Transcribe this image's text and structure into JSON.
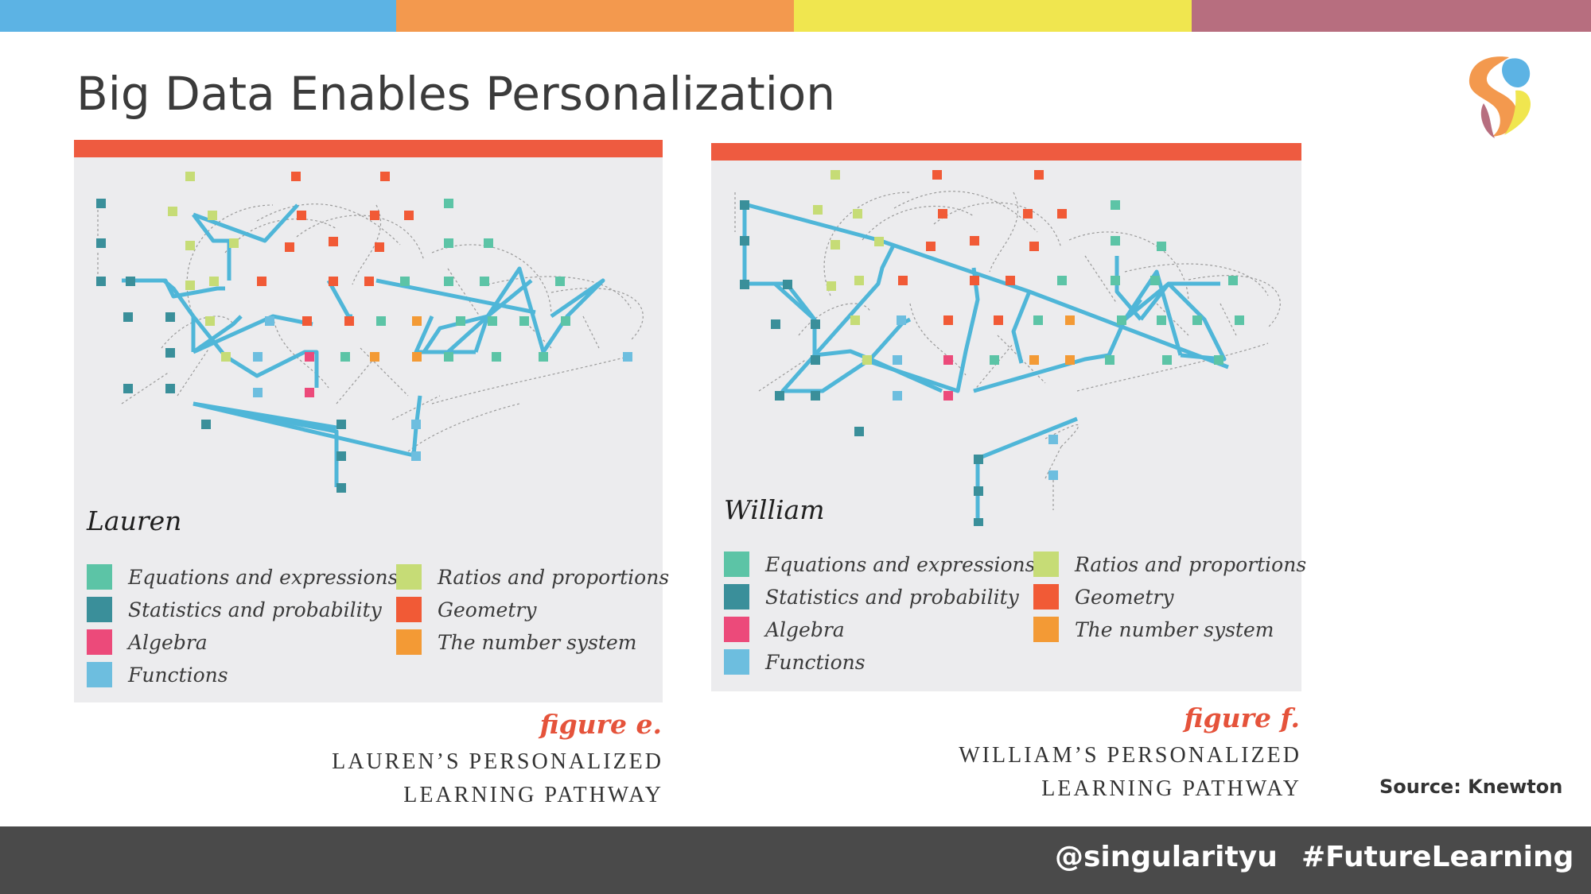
{
  "slide": {
    "title": "Big Data Enables Personalization",
    "stripe_colors": [
      "#5cb3e4",
      "#f3994e",
      "#f0e64f",
      "#b76e7f"
    ],
    "source": "Source: Knewton"
  },
  "footer": {
    "handle": "@singularityu",
    "hashtag": "#FutureLearning"
  },
  "legend_colors": {
    "equations": "#5cc4a6",
    "statistics": "#3a8f9a",
    "algebra": "#ec4a7a",
    "functions": "#6dbedf",
    "ratios": "#c6dc76",
    "geometry": "#f15a36",
    "number_system": "#f39a35"
  },
  "panels": [
    {
      "person": "Lauren",
      "legend": {
        "equations": "Equations and expressions",
        "statistics": "Statistics and probability",
        "algebra": "Algebra",
        "functions": "Functions",
        "ratios": "Ratios and proportions",
        "geometry": "Geometry",
        "number_system": "The number system"
      },
      "figure_label": "figure e.",
      "caption_line1": "LAUREN’S PERSONALIZED",
      "caption_line2": "LEARNING PATHWAY"
    },
    {
      "person": "William",
      "legend": {
        "equations": "Equations and expressions",
        "statistics": "Statistics and probability",
        "algebra": "Algebra",
        "functions": "Functions",
        "ratios": "Ratios and proportions",
        "geometry": "Geometry",
        "number_system": "The number system"
      },
      "figure_label": "figure f.",
      "caption_line1": "WILLIAM’S PERSONALIZED",
      "caption_line2": "LEARNING PATHWAY"
    }
  ]
}
